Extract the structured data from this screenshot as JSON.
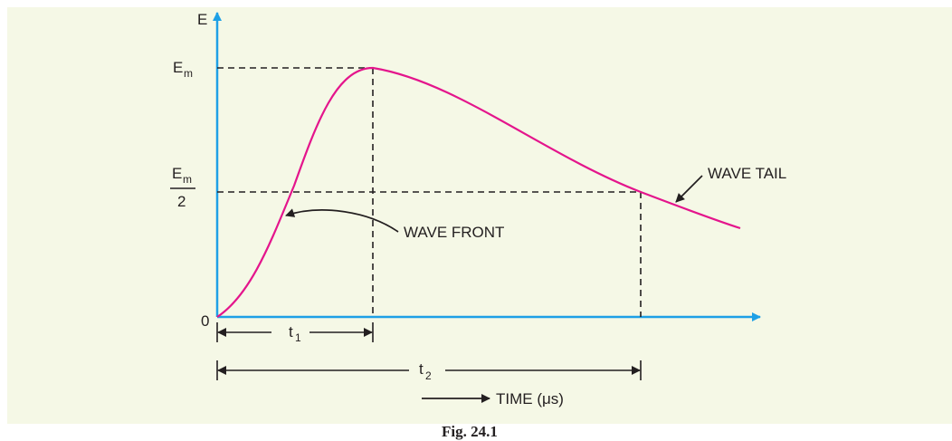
{
  "diagram": {
    "axis_y_label": "E",
    "peak_label": "E",
    "peak_sub": "m",
    "half_top": "E",
    "half_sub": "m",
    "half_bottom": "2",
    "origin_label": "0",
    "t1_label": "t",
    "t1_sub": "1",
    "t2_label": "t",
    "t2_sub": "2",
    "wave_front_label": "WAVE FRONT",
    "wave_tail_label": "WAVE TAIL",
    "time_label": "TIME (μs)",
    "caption": "Fig. 24.1",
    "colors": {
      "axis": "#1ea0e6",
      "curve": "#e4158c",
      "ink": "#231f20",
      "background": "#f5f8e6"
    }
  }
}
